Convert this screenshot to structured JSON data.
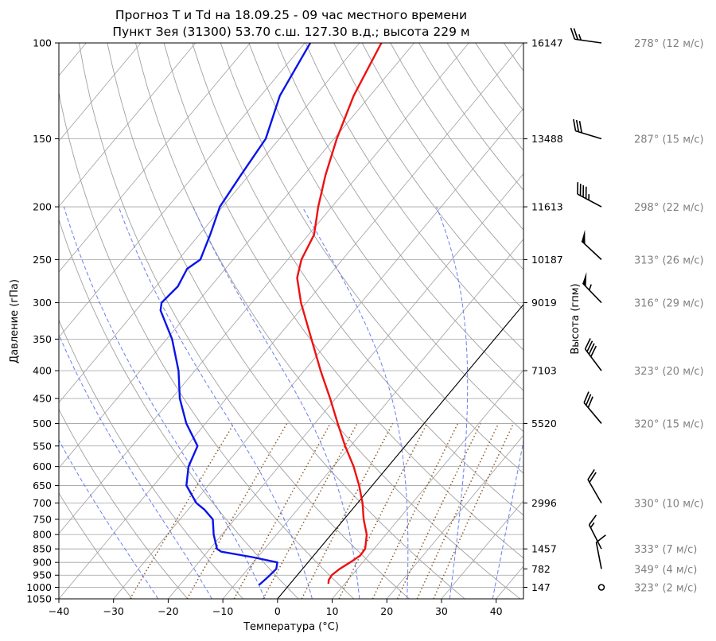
{
  "chart_data": {
    "type": "line",
    "title": "Прогноз T и Td на 18.09.25 - 09 час местного времени",
    "subtitle": "Пункт Зея (31300) 53.70 с.ш. 127.30 в.д.; высота 229 м",
    "xlabel": "Температура (°C)",
    "ylabel": "Давление (гПа)",
    "ylabel_right": "Высота (гпм)",
    "xlim": [
      -40,
      45
    ],
    "ylim": [
      1050,
      100
    ],
    "yscale": "log",
    "skew": "skew-T",
    "grid": true,
    "x_ticks": [
      "−40",
      "−30",
      "−20",
      "−10",
      "0",
      "10",
      "20",
      "30",
      "40"
    ],
    "y_ticks": [
      1050,
      1000,
      950,
      900,
      850,
      800,
      750,
      700,
      650,
      600,
      550,
      500,
      450,
      400,
      350,
      300,
      250,
      200,
      150,
      100
    ],
    "height_ticks": [
      {
        "p": 100,
        "label": "16147"
      },
      {
        "p": 150,
        "label": "13488"
      },
      {
        "p": 200,
        "label": "11613"
      },
      {
        "p": 250,
        "label": "10187"
      },
      {
        "p": 300,
        "label": "9019"
      },
      {
        "p": 400,
        "label": "7103"
      },
      {
        "p": 500,
        "label": "5520"
      },
      {
        "p": 700,
        "label": "2996"
      },
      {
        "p": 850,
        "label": "1457"
      },
      {
        "p": 925,
        "label": "782"
      },
      {
        "p": 1000,
        "label": "147"
      }
    ],
    "series": [
      {
        "color": "#ee1111",
        "points": [
          {
            "p": 985,
            "t": 7.0
          },
          {
            "p": 970,
            "t": 6.5
          },
          {
            "p": 950,
            "t": 6.3
          },
          {
            "p": 925,
            "t": 6.8
          },
          {
            "p": 900,
            "t": 7.7
          },
          {
            "p": 875,
            "t": 8.5
          },
          {
            "p": 850,
            "t": 8.4
          },
          {
            "p": 800,
            "t": 6.5
          },
          {
            "p": 750,
            "t": 3.6
          },
          {
            "p": 700,
            "t": 0.9
          },
          {
            "p": 650,
            "t": -2.4
          },
          {
            "p": 600,
            "t": -6.3
          },
          {
            "p": 550,
            "t": -11.0
          },
          {
            "p": 500,
            "t": -15.8
          },
          {
            "p": 450,
            "t": -21.0
          },
          {
            "p": 400,
            "t": -27.0
          },
          {
            "p": 350,
            "t": -33.5
          },
          {
            "p": 300,
            "t": -41.0
          },
          {
            "p": 270,
            "t": -45.5
          },
          {
            "p": 250,
            "t": -47.5
          },
          {
            "p": 225,
            "t": -49.0
          },
          {
            "p": 200,
            "t": -52.5
          },
          {
            "p": 175,
            "t": -56.0
          },
          {
            "p": 150,
            "t": -59.5
          },
          {
            "p": 125,
            "t": -63.0
          },
          {
            "p": 100,
            "t": -66.0
          }
        ]
      },
      {
        "color": "#0a14e8",
        "points": [
          {
            "p": 990,
            "t": -5.5
          },
          {
            "p": 975,
            "t": -5.3
          },
          {
            "p": 950,
            "t": -5.0
          },
          {
            "p": 925,
            "t": -4.8
          },
          {
            "p": 900,
            "t": -5.6
          },
          {
            "p": 880,
            "t": -11.0
          },
          {
            "p": 860,
            "t": -17.5
          },
          {
            "p": 850,
            "t": -18.7
          },
          {
            "p": 800,
            "t": -21.5
          },
          {
            "p": 750,
            "t": -24.0
          },
          {
            "p": 720,
            "t": -27.0
          },
          {
            "p": 700,
            "t": -29.5
          },
          {
            "p": 650,
            "t": -34.0
          },
          {
            "p": 600,
            "t": -36.5
          },
          {
            "p": 550,
            "t": -38.0
          },
          {
            "p": 500,
            "t": -43.5
          },
          {
            "p": 450,
            "t": -48.5
          },
          {
            "p": 400,
            "t": -53.0
          },
          {
            "p": 350,
            "t": -59.0
          },
          {
            "p": 310,
            "t": -65.5
          },
          {
            "p": 300,
            "t": -66.5
          },
          {
            "p": 280,
            "t": -66.0
          },
          {
            "p": 260,
            "t": -67.0
          },
          {
            "p": 250,
            "t": -66.0
          },
          {
            "p": 225,
            "t": -68.0
          },
          {
            "p": 200,
            "t": -70.5
          },
          {
            "p": 175,
            "t": -71.5
          },
          {
            "p": 150,
            "t": -72.5
          },
          {
            "p": 125,
            "t": -76.5
          },
          {
            "p": 100,
            "t": -79.0
          }
        ]
      }
    ],
    "winds": [
      {
        "p": 1000,
        "dir": 323,
        "speed": 2,
        "label": "323° (2 м/с)"
      },
      {
        "p": 925,
        "dir": 349,
        "speed": 4,
        "label": "349° (4 м/с)"
      },
      {
        "p": 850,
        "dir": 333,
        "speed": 7,
        "label": "333° (7 м/с)"
      },
      {
        "p": 700,
        "dir": 330,
        "speed": 10,
        "label": "330° (10 м/с)"
      },
      {
        "p": 500,
        "dir": 320,
        "speed": 15,
        "label": "320° (15 м/с)"
      },
      {
        "p": 400,
        "dir": 323,
        "speed": 20,
        "label": "323° (20 м/с)"
      },
      {
        "p": 300,
        "dir": 316,
        "speed": 29,
        "label": "316° (29 м/с)"
      },
      {
        "p": 250,
        "dir": 313,
        "speed": 26,
        "label": "313° (26 м/с)"
      },
      {
        "p": 200,
        "dir": 298,
        "speed": 22,
        "label": "298° (22 м/с)"
      },
      {
        "p": 150,
        "dir": 287,
        "speed": 15,
        "label": "287° (15 м/с)"
      },
      {
        "p": 100,
        "dir": 278,
        "speed": 12,
        "label": "278° (12 м/с)"
      }
    ],
    "colors": {
      "temperature": "#ee1111",
      "dewpoint": "#0a14e8",
      "grid": "#a0a0a0",
      "dry_adiabat": "#a0a0a0",
      "moist_adiabat": "#6a7ef0",
      "mixing_ratio": "#8b5a2b",
      "freezing_isotherm": "#000000",
      "wind_text": "#808080"
    }
  }
}
